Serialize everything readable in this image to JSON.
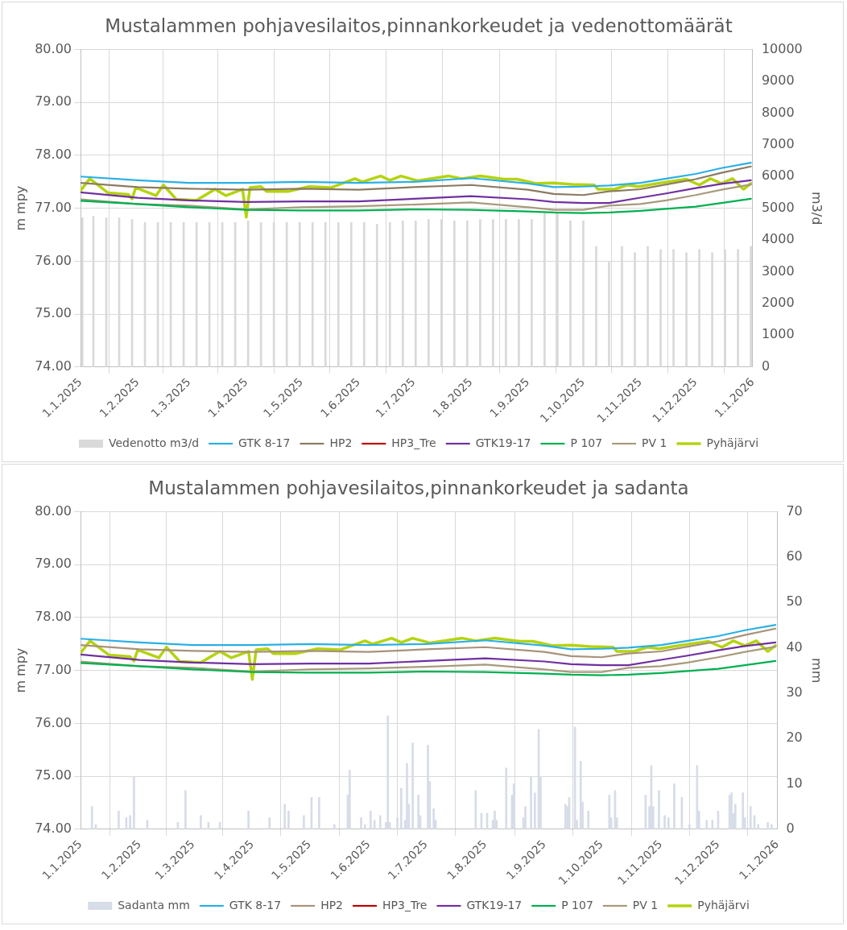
{
  "chart_data": [
    {
      "type": "line",
      "title": "Mustalammen pohjavesilaitos,pinnankorkeudet ja vedenottomäärät",
      "ylabel": "m mpy",
      "y2label": "m3/d",
      "grid": true,
      "legend": "bottom",
      "marker": "none",
      "line_style": "solid",
      "xlim": [
        "2025-01-01",
        "2026-01-01"
      ],
      "xticks": [
        {
          "value": "2025-01-01",
          "label": "1.1.2025"
        },
        {
          "value": "2025-02-01",
          "label": "1.2.2025"
        },
        {
          "value": "2025-03-01",
          "label": "1.3.2025"
        },
        {
          "value": "2025-04-01",
          "label": "1.4.2025"
        },
        {
          "value": "2025-05-01",
          "label": "1.5.2025"
        },
        {
          "value": "2025-06-01",
          "label": "1.6.2025"
        },
        {
          "value": "2025-07-01",
          "label": "1.7.2025"
        },
        {
          "value": "2025-08-01",
          "label": "1.8.2025"
        },
        {
          "value": "2025-09-01",
          "label": "1.9.2025"
        },
        {
          "value": "2025-10-01",
          "label": "1.10.2025"
        },
        {
          "value": "2025-11-01",
          "label": "1.11.2025"
        },
        {
          "value": "2025-12-01",
          "label": "1.12.2025"
        },
        {
          "value": "2026-01-01",
          "label": "1.1.2026"
        }
      ],
      "ylim": [
        74,
        80
      ],
      "yticks": [
        {
          "value": 74,
          "label": "74.00"
        },
        {
          "value": 75,
          "label": "75.00"
        },
        {
          "value": 76,
          "label": "76.00"
        },
        {
          "value": 77,
          "label": "77.00"
        },
        {
          "value": 78,
          "label": "78.00"
        },
        {
          "value": 79,
          "label": "79.00"
        },
        {
          "value": 80,
          "label": "80.00"
        }
      ],
      "y2lim": [
        0,
        10000
      ],
      "y2ticks": [
        0,
        1000,
        2000,
        3000,
        4000,
        5000,
        6000,
        7000,
        8000,
        9000,
        10000
      ],
      "x": [
        "2025-01-01",
        "2025-02-01",
        "2025-03-01",
        "2025-04-01",
        "2025-05-01",
        "2025-06-01",
        "2025-07-01",
        "2025-08-01",
        "2025-09-01",
        "2025-09-15",
        "2025-10-01",
        "2025-10-15",
        "2025-11-01",
        "2025-11-15",
        "2025-12-01",
        "2025-12-15",
        "2025-12-31"
      ],
      "series": [
        {
          "name": "Vedenotto m3/d",
          "type": "bar",
          "axis": "y2",
          "color": "#d9d9d9",
          "x": [
            "2025-01-02",
            "2025-01-08",
            "2025-01-15",
            "2025-01-22",
            "2025-01-29",
            "2025-02-05",
            "2025-02-12",
            "2025-02-19",
            "2025-02-26",
            "2025-03-05",
            "2025-03-12",
            "2025-03-19",
            "2025-03-26",
            "2025-04-02",
            "2025-04-09",
            "2025-04-16",
            "2025-04-23",
            "2025-04-30",
            "2025-05-07",
            "2025-05-14",
            "2025-05-21",
            "2025-05-28",
            "2025-06-04",
            "2025-06-11",
            "2025-06-18",
            "2025-06-25",
            "2025-07-02",
            "2025-07-09",
            "2025-07-16",
            "2025-07-23",
            "2025-07-30",
            "2025-08-06",
            "2025-08-13",
            "2025-08-20",
            "2025-08-27",
            "2025-09-03",
            "2025-09-10",
            "2025-09-17",
            "2025-09-24",
            "2025-10-01",
            "2025-10-08",
            "2025-10-15",
            "2025-10-22",
            "2025-10-29",
            "2025-11-05",
            "2025-11-12",
            "2025-11-19",
            "2025-11-26",
            "2025-12-03",
            "2025-12-10",
            "2025-12-17",
            "2025-12-24",
            "2025-12-31"
          ],
          "values": [
            4700,
            4750,
            4700,
            4700,
            4650,
            4550,
            4550,
            4550,
            4550,
            4550,
            4550,
            4550,
            4550,
            4600,
            4550,
            4550,
            4550,
            4550,
            4550,
            4550,
            4550,
            4550,
            4550,
            4500,
            4550,
            4600,
            4600,
            4650,
            4650,
            4600,
            4600,
            4650,
            4650,
            4650,
            4650,
            4650,
            4850,
            4850,
            4600,
            4600,
            3800,
            3300,
            3800,
            3600,
            3800,
            3700,
            3700,
            3600,
            3700,
            3600,
            3700,
            3700,
            3800
          ]
        },
        {
          "name": "GTK 8-17",
          "color": "#2ab0e6",
          "values": [
            77.6,
            77.53,
            77.48,
            77.48,
            77.5,
            77.48,
            77.5,
            77.57,
            77.47,
            77.4,
            77.41,
            77.43,
            77.48,
            77.56,
            77.65,
            77.76,
            77.86
          ]
        },
        {
          "name": "HP2",
          "color": "#8c7b62",
          "values": [
            77.48,
            77.4,
            77.37,
            77.35,
            77.37,
            77.35,
            77.4,
            77.44,
            77.35,
            77.27,
            77.25,
            77.32,
            77.36,
            77.45,
            77.55,
            77.67,
            77.79
          ]
        },
        {
          "name": "HP3_Tre",
          "color": "#c00000",
          "values": [
            null,
            null,
            null,
            null,
            null,
            null,
            null,
            null,
            null,
            null,
            null,
            null,
            null,
            null,
            null,
            null,
            null
          ]
        },
        {
          "name": "GTK19-17",
          "color": "#7030a0",
          "values": [
            77.3,
            77.2,
            77.15,
            77.12,
            77.13,
            77.13,
            77.18,
            77.23,
            77.17,
            77.12,
            77.1,
            77.1,
            77.2,
            77.28,
            77.38,
            77.46,
            77.53
          ]
        },
        {
          "name": "P 107",
          "color": "#00b050",
          "values": [
            77.14,
            77.08,
            77.02,
            76.97,
            76.96,
            76.96,
            76.98,
            76.97,
            76.94,
            76.92,
            76.91,
            76.92,
            76.95,
            76.99,
            77.03,
            77.1,
            77.18
          ]
        },
        {
          "name": "PV 1",
          "color": "#a89a7c",
          "values": [
            77.17,
            77.08,
            77.05,
            76.98,
            77.02,
            77.04,
            77.07,
            77.11,
            77.02,
            76.97,
            76.97,
            77.05,
            77.08,
            77.15,
            77.25,
            77.35,
            77.45
          ]
        },
        {
          "name": "Pyhäjärvi",
          "color": "#b5d30f",
          "x": [
            "2025-01-01",
            "2025-01-06",
            "2025-01-16",
            "2025-01-27",
            "2025-01-29",
            "2025-01-31",
            "2025-02-11",
            "2025-02-15",
            "2025-02-22",
            "2025-03-05",
            "2025-03-15",
            "2025-03-21",
            "2025-03-30",
            "2025-04-01",
            "2025-04-03",
            "2025-04-09",
            "2025-04-12",
            "2025-04-24",
            "2025-05-05",
            "2025-05-17",
            "2025-05-30",
            "2025-06-03",
            "2025-06-13",
            "2025-06-18",
            "2025-06-24",
            "2025-07-03",
            "2025-07-20",
            "2025-07-27",
            "2025-08-06",
            "2025-08-19",
            "2025-08-26",
            "2025-09-05",
            "2025-09-15",
            "2025-09-25",
            "2025-10-07",
            "2025-10-09",
            "2025-10-18",
            "2025-10-25",
            "2025-10-31",
            "2025-11-12",
            "2025-11-26",
            "2025-12-03",
            "2025-12-09",
            "2025-12-15",
            "2025-12-21",
            "2025-12-27",
            "2025-12-31"
          ],
          "values": [
            77.33,
            77.56,
            77.29,
            77.26,
            77.18,
            77.39,
            77.24,
            77.44,
            77.17,
            77.15,
            77.36,
            77.24,
            77.36,
            76.83,
            77.39,
            77.41,
            77.32,
            77.32,
            77.41,
            77.39,
            77.56,
            77.5,
            77.61,
            77.53,
            77.61,
            77.52,
            77.61,
            77.56,
            77.61,
            77.55,
            77.55,
            77.47,
            77.48,
            77.45,
            77.44,
            77.36,
            77.36,
            77.44,
            77.41,
            77.48,
            77.55,
            77.44,
            77.56,
            77.47,
            77.56,
            77.36,
            77.47
          ]
        }
      ]
    },
    {
      "type": "line",
      "title": "Mustalammen pohjavesilaitos,pinnankorkeudet ja sadanta",
      "ylabel": "m mpy",
      "y2label": "mm",
      "grid": true,
      "legend": "bottom",
      "marker": "none",
      "line_style": "solid",
      "xlim": [
        "2025-01-01",
        "2026-01-01"
      ],
      "xticks": [
        {
          "value": "2025-01-01",
          "label": "1.1.2025"
        },
        {
          "value": "2025-02-01",
          "label": "1.2.2025"
        },
        {
          "value": "2025-03-01",
          "label": "1.3.2025"
        },
        {
          "value": "2025-04-01",
          "label": "1.4.2025"
        },
        {
          "value": "2025-05-01",
          "label": "1.5.2025"
        },
        {
          "value": "2025-06-01",
          "label": "1.6.2025"
        },
        {
          "value": "2025-07-01",
          "label": "1.7.2025"
        },
        {
          "value": "2025-08-01",
          "label": "1.8.2025"
        },
        {
          "value": "2025-09-01",
          "label": "1.9.2025"
        },
        {
          "value": "2025-10-01",
          "label": "1.10.2025"
        },
        {
          "value": "2025-11-01",
          "label": "1.11.2025"
        },
        {
          "value": "2025-12-01",
          "label": "1.12.2025"
        },
        {
          "value": "2026-01-01",
          "label": "1.1.2026"
        }
      ],
      "ylim": [
        74,
        80
      ],
      "yticks": [
        {
          "value": 74,
          "label": "74.00"
        },
        {
          "value": 75,
          "label": "75.00"
        },
        {
          "value": 76,
          "label": "76.00"
        },
        {
          "value": 77,
          "label": "77.00"
        },
        {
          "value": 78,
          "label": "78.00"
        },
        {
          "value": 79,
          "label": "79.00"
        },
        {
          "value": 80,
          "label": "80.00"
        }
      ],
      "y2lim": [
        0,
        70
      ],
      "y2ticks": [
        0,
        10,
        20,
        30,
        40,
        50,
        60,
        70
      ],
      "x": [
        "2025-01-01",
        "2025-02-01",
        "2025-03-01",
        "2025-04-01",
        "2025-05-01",
        "2025-06-01",
        "2025-07-01",
        "2025-08-01",
        "2025-09-01",
        "2025-09-15",
        "2025-10-01",
        "2025-10-15",
        "2025-11-01",
        "2025-11-15",
        "2025-12-01",
        "2025-12-15",
        "2025-12-31"
      ],
      "series": [
        {
          "name": "Sadanta mm",
          "type": "bar",
          "axis": "y2",
          "color": "#d6dce8",
          "x": [
            "2025-01-07",
            "2025-01-09",
            "2025-01-21",
            "2025-01-25",
            "2025-01-27",
            "2025-01-29",
            "2025-02-05",
            "2025-02-21",
            "2025-02-25",
            "2025-03-05",
            "2025-03-09",
            "2025-03-15",
            "2025-03-30",
            "2025-04-10",
            "2025-04-18",
            "2025-04-20",
            "2025-04-28",
            "2025-05-02",
            "2025-05-06",
            "2025-05-14",
            "2025-05-21",
            "2025-05-22",
            "2025-05-28",
            "2025-05-30",
            "2025-06-02",
            "2025-06-04",
            "2025-06-07",
            "2025-06-10",
            "2025-06-11",
            "2025-06-12",
            "2025-06-16",
            "2025-06-18",
            "2025-06-20",
            "2025-06-21",
            "2025-06-22",
            "2025-06-24",
            "2025-06-27",
            "2025-06-28",
            "2025-07-02",
            "2025-07-03",
            "2025-07-05",
            "2025-07-06",
            "2025-07-27",
            "2025-07-30",
            "2025-08-02",
            "2025-08-05",
            "2025-08-06",
            "2025-08-07",
            "2025-08-12",
            "2025-08-15",
            "2025-08-16",
            "2025-08-21",
            "2025-08-22",
            "2025-08-25",
            "2025-08-27",
            "2025-08-29",
            "2025-08-30",
            "2025-09-12",
            "2025-09-13",
            "2025-09-14",
            "2025-09-17",
            "2025-09-18",
            "2025-09-20",
            "2025-09-21",
            "2025-09-24",
            "2025-10-05",
            "2025-10-06",
            "2025-10-08",
            "2025-10-09",
            "2025-10-24",
            "2025-10-26",
            "2025-10-27",
            "2025-10-28",
            "2025-10-31",
            "2025-11-03",
            "2025-11-05",
            "2025-11-08",
            "2025-11-12",
            "2025-11-16",
            "2025-11-20",
            "2025-11-21",
            "2025-11-25",
            "2025-11-28",
            "2025-12-01",
            "2025-12-07",
            "2025-12-08",
            "2025-12-09",
            "2025-12-10",
            "2025-12-14",
            "2025-12-15",
            "2025-12-18",
            "2025-12-20",
            "2025-12-22",
            "2025-12-27",
            "2025-12-29"
          ],
          "values": [
            5,
            1,
            4,
            2.5,
            3,
            11.5,
            2,
            1.5,
            8.5,
            3,
            1.5,
            1.5,
            4,
            2.5,
            5.5,
            4,
            3,
            7,
            7,
            1,
            7.5,
            13,
            2.5,
            1,
            4,
            2,
            3,
            1.5,
            25,
            1.5,
            2.5,
            9,
            2,
            14.5,
            5.5,
            19,
            7.5,
            3,
            18.5,
            10.5,
            4.5,
            2,
            8.5,
            3.5,
            3.5,
            2,
            4,
            2,
            13.5,
            7.5,
            10,
            2.5,
            5,
            11.5,
            8,
            22,
            11.5,
            5.5,
            5,
            7,
            22.5,
            2,
            15,
            6,
            4,
            7.5,
            2.5,
            8.5,
            2.5,
            7.5,
            5,
            14,
            5,
            8.5,
            3,
            2.5,
            10,
            7,
            1,
            14,
            4,
            2,
            2,
            4,
            7.5,
            8,
            3.5,
            5.5,
            8,
            2.5,
            5,
            3,
            1,
            1.5,
            1
          ]
        },
        {
          "name": "GTK 8-17",
          "color": "#2ab0e6",
          "values": [
            77.6,
            77.53,
            77.48,
            77.48,
            77.5,
            77.48,
            77.5,
            77.57,
            77.47,
            77.4,
            77.41,
            77.43,
            77.48,
            77.56,
            77.65,
            77.76,
            77.86
          ]
        },
        {
          "name": "HP2",
          "color": "#a8927a",
          "values": [
            77.48,
            77.4,
            77.37,
            77.35,
            77.37,
            77.35,
            77.4,
            77.44,
            77.35,
            77.27,
            77.25,
            77.32,
            77.36,
            77.45,
            77.55,
            77.67,
            77.79
          ]
        },
        {
          "name": "HP3_Tre",
          "color": "#c00000",
          "values": [
            null,
            null,
            null,
            null,
            null,
            null,
            null,
            null,
            null,
            null,
            null,
            null,
            null,
            null,
            null,
            null,
            null
          ]
        },
        {
          "name": "GTK19-17",
          "color": "#7030a0",
          "values": [
            77.3,
            77.2,
            77.15,
            77.12,
            77.13,
            77.13,
            77.18,
            77.23,
            77.17,
            77.12,
            77.1,
            77.1,
            77.2,
            77.28,
            77.38,
            77.46,
            77.53
          ]
        },
        {
          "name": "P 107",
          "color": "#00b050",
          "values": [
            77.14,
            77.08,
            77.02,
            76.97,
            76.96,
            76.96,
            76.98,
            76.97,
            76.94,
            76.92,
            76.91,
            76.92,
            76.95,
            76.99,
            77.03,
            77.1,
            77.18
          ]
        },
        {
          "name": "PV 1",
          "color": "#a89a7c",
          "values": [
            77.17,
            77.08,
            77.05,
            76.98,
            77.02,
            77.04,
            77.07,
            77.11,
            77.02,
            76.97,
            76.97,
            77.05,
            77.08,
            77.15,
            77.25,
            77.35,
            77.45
          ]
        },
        {
          "name": "Pyhäjärvi",
          "color": "#b5d30f",
          "x": [
            "2025-01-01",
            "2025-01-06",
            "2025-01-16",
            "2025-01-27",
            "2025-01-29",
            "2025-01-31",
            "2025-02-11",
            "2025-02-15",
            "2025-02-22",
            "2025-03-05",
            "2025-03-15",
            "2025-03-21",
            "2025-03-30",
            "2025-04-01",
            "2025-04-03",
            "2025-04-09",
            "2025-04-12",
            "2025-04-24",
            "2025-05-05",
            "2025-05-17",
            "2025-05-30",
            "2025-06-03",
            "2025-06-13",
            "2025-06-18",
            "2025-06-24",
            "2025-07-03",
            "2025-07-20",
            "2025-07-27",
            "2025-08-06",
            "2025-08-19",
            "2025-08-26",
            "2025-09-05",
            "2025-09-15",
            "2025-09-25",
            "2025-10-07",
            "2025-10-09",
            "2025-10-18",
            "2025-10-25",
            "2025-10-31",
            "2025-11-12",
            "2025-11-26",
            "2025-12-03",
            "2025-12-09",
            "2025-12-15",
            "2025-12-21",
            "2025-12-27",
            "2025-12-31"
          ],
          "values": [
            77.33,
            77.56,
            77.29,
            77.26,
            77.18,
            77.39,
            77.24,
            77.44,
            77.17,
            77.15,
            77.36,
            77.24,
            77.36,
            76.83,
            77.39,
            77.41,
            77.32,
            77.32,
            77.41,
            77.39,
            77.56,
            77.5,
            77.61,
            77.53,
            77.61,
            77.52,
            77.61,
            77.56,
            77.61,
            77.55,
            77.55,
            77.47,
            77.48,
            77.45,
            77.44,
            77.36,
            77.36,
            77.44,
            77.41,
            77.48,
            77.55,
            77.44,
            77.56,
            77.47,
            77.56,
            77.36,
            77.47
          ]
        }
      ]
    }
  ]
}
